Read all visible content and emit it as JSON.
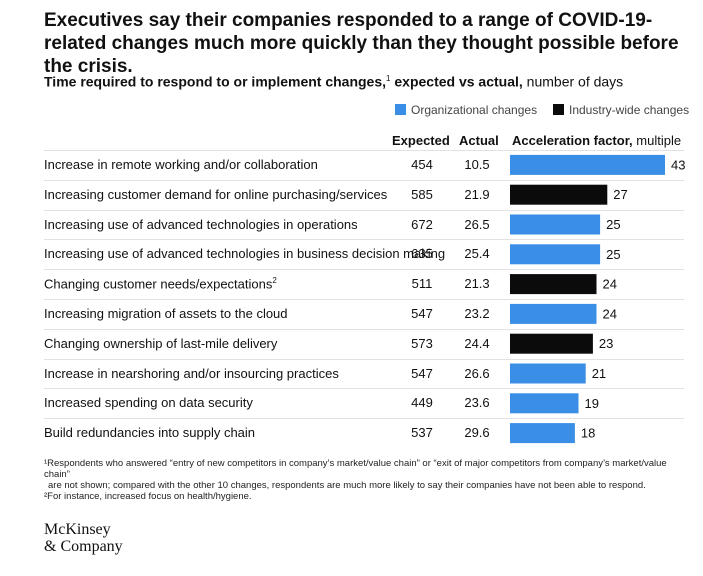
{
  "title": "Executives say their companies responded to a range of COVID-19-related changes much more quickly than they thought possible before the crisis.",
  "subtitle": {
    "bold": "Time required to respond to or implement changes,",
    "sup": "1",
    "bold2": " expected vs actual,",
    "normal": " number of days"
  },
  "legend": {
    "organizational": "Organizational changes",
    "industry": "Industry-wide changes"
  },
  "columns": {
    "expected": "Expected",
    "actual": "Actual",
    "acceleration_bold": "Acceleration factor,",
    "acceleration_normal": " multiple"
  },
  "colors": {
    "organizational": "#3a8ee6",
    "industry": "#0b0b0b"
  },
  "chart_data": {
    "type": "bar",
    "orientation": "horizontal",
    "value_label": "Acceleration factor, multiple",
    "rows": [
      {
        "label": "Increase in remote working and/or collaboration",
        "sup": "",
        "expected": "454",
        "actual": "10.5",
        "factor": 43,
        "group": "organizational"
      },
      {
        "label": "Increasing customer demand for online purchasing/services",
        "sup": "",
        "expected": "585",
        "actual": "21.9",
        "factor": 27,
        "group": "industry"
      },
      {
        "label": "Increasing use of advanced technologies in operations",
        "sup": "",
        "expected": "672",
        "actual": "26.5",
        "factor": 25,
        "group": "organizational"
      },
      {
        "label": "Increasing use of advanced technologies in business decision making",
        "sup": "",
        "expected": "635",
        "actual": "25.4",
        "factor": 25,
        "group": "organizational"
      },
      {
        "label": "Changing customer needs/expectations",
        "sup": "2",
        "expected": "511",
        "actual": "21.3",
        "factor": 24,
        "group": "industry"
      },
      {
        "label": "Increasing migration of assets to the cloud",
        "sup": "",
        "expected": "547",
        "actual": "23.2",
        "factor": 24,
        "group": "organizational"
      },
      {
        "label": "Changing ownership of last-mile delivery",
        "sup": "",
        "expected": "573",
        "actual": "24.4",
        "factor": 23,
        "group": "industry"
      },
      {
        "label": "Increase in nearshoring and/or insourcing practices",
        "sup": "",
        "expected": "547",
        "actual": "26.6",
        "factor": 21,
        "group": "organizational"
      },
      {
        "label": "Increased spending on data security",
        "sup": "",
        "expected": "449",
        "actual": "23.6",
        "factor": 19,
        "group": "organizational"
      },
      {
        "label": "Build redundancies into supply chain",
        "sup": "",
        "expected": "537",
        "actual": "29.6",
        "factor": 18,
        "group": "organizational"
      }
    ],
    "xlim": [
      0,
      43
    ]
  },
  "footnotes": [
    "¹Respondents who answered “entry of new competitors in company’s market/value chain” or “exit of major competitors from company’s market/value chain”",
    "are not shown; compared with the other 10 changes, respondents are much more likely to say their companies have not been able to respond.",
    "²For instance, increased focus on health/hygiene."
  ],
  "logo": {
    "line1": "McKinsey",
    "line2": "& Company"
  }
}
